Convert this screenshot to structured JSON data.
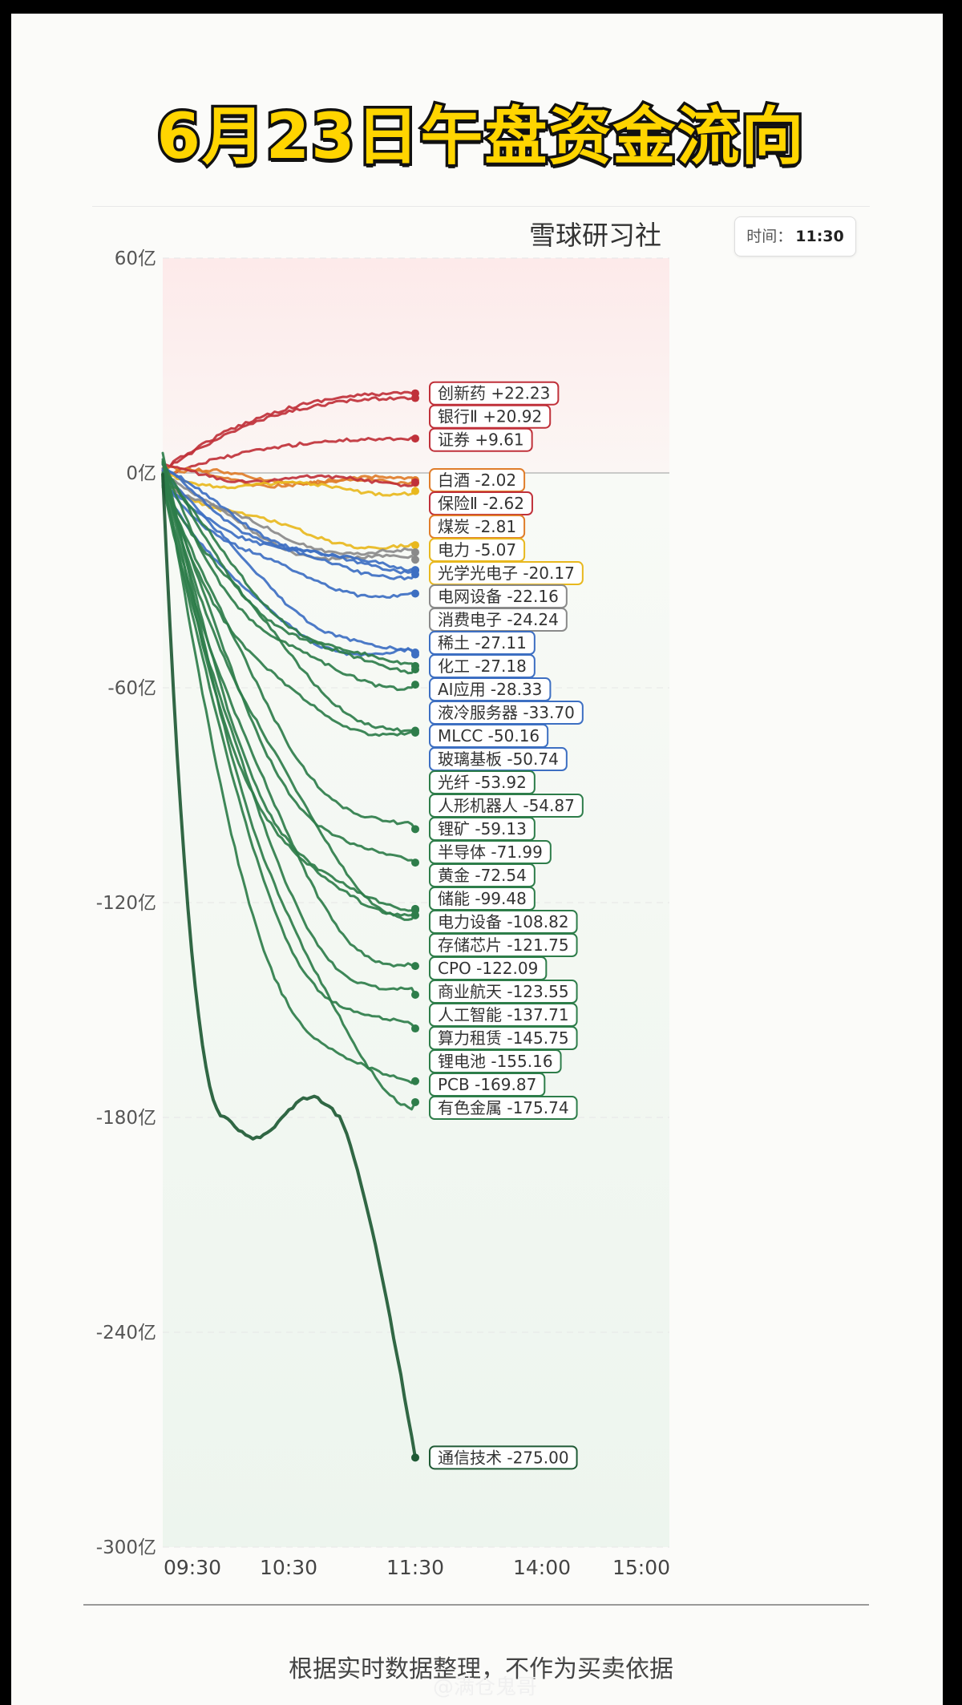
{
  "headline": "6月23日午盘资金流向",
  "brand": "雪球研习社",
  "time_badge": {
    "label": "时间：",
    "value": "11:30"
  },
  "footnote": "根据实时数据整理，不作为买卖依据",
  "watermark": "@满仓鬼哥",
  "colors": {
    "red": "#c0313a",
    "orange": "#e07d2a",
    "yellow": "#e8b81e",
    "gray": "#8a8a8a",
    "blue": "#3d6fc2",
    "green": "#2e7d4a",
    "darkgreen": "#1f5a35"
  },
  "chart_data": {
    "type": "line",
    "xlabel": "",
    "ylabel": "",
    "x_ticks": [
      "09:30",
      "10:30",
      "11:30",
      "14:00",
      "15:00"
    ],
    "y_ticks": [
      "60亿",
      "0亿",
      "-60亿",
      "-120亿",
      "-180亿",
      "-240亿",
      "-300亿"
    ],
    "ylim": [
      -300,
      60
    ],
    "series": [
      {
        "name": "创新药",
        "value": 22.23,
        "value_text": "+22.23",
        "color": "red"
      },
      {
        "name": "银行Ⅱ",
        "value": 20.92,
        "value_text": "+20.92",
        "color": "red"
      },
      {
        "name": "证券",
        "value": 9.61,
        "value_text": "+9.61",
        "color": "red"
      },
      {
        "name": "白酒",
        "value": -2.02,
        "value_text": "-2.02",
        "color": "orange"
      },
      {
        "name": "煤炭",
        "value": -2.81,
        "value_text": "-2.81",
        "color": "orange"
      },
      {
        "name": "保险Ⅱ",
        "value": -2.62,
        "value_text": "-2.62",
        "color": "red"
      },
      {
        "name": "电力",
        "value": -5.07,
        "value_text": "-5.07",
        "color": "yellow"
      },
      {
        "name": "光学光电子",
        "value": -20.17,
        "value_text": "-20.17",
        "color": "yellow"
      },
      {
        "name": "电网设备",
        "value": -22.16,
        "value_text": "-22.16",
        "color": "gray"
      },
      {
        "name": "消费电子",
        "value": -24.24,
        "value_text": "-24.24",
        "color": "gray"
      },
      {
        "name": "稀土",
        "value": -27.11,
        "value_text": "-27.11",
        "color": "blue"
      },
      {
        "name": "化工",
        "value": -27.18,
        "value_text": "-27.18",
        "color": "blue"
      },
      {
        "name": "AI应用",
        "value": -28.33,
        "value_text": "-28.33",
        "color": "blue"
      },
      {
        "name": "液冷服务器",
        "value": -33.7,
        "value_text": "-33.70",
        "color": "blue"
      },
      {
        "name": "MLCC",
        "value": -50.16,
        "value_text": "-50.16",
        "color": "blue"
      },
      {
        "name": "玻璃基板",
        "value": -50.74,
        "value_text": "-50.74",
        "color": "blue"
      },
      {
        "name": "光纤",
        "value": -53.92,
        "value_text": "-53.92",
        "color": "green"
      },
      {
        "name": "人形机器人",
        "value": -54.87,
        "value_text": "-54.87",
        "color": "green"
      },
      {
        "name": "锂矿",
        "value": -59.13,
        "value_text": "-59.13",
        "color": "green"
      },
      {
        "name": "半导体",
        "value": -71.99,
        "value_text": "-71.99",
        "color": "green"
      },
      {
        "name": "黄金",
        "value": -72.54,
        "value_text": "-72.54",
        "color": "green"
      },
      {
        "name": "储能",
        "value": -99.48,
        "value_text": "-99.48",
        "color": "green"
      },
      {
        "name": "电力设备",
        "value": -108.82,
        "value_text": "-108.82",
        "color": "green"
      },
      {
        "name": "存储芯片",
        "value": -121.75,
        "value_text": "-121.75",
        "color": "green"
      },
      {
        "name": "CPO",
        "value": -122.09,
        "value_text": "-122.09",
        "color": "green"
      },
      {
        "name": "商业航天",
        "value": -123.55,
        "value_text": "-123.55",
        "color": "green"
      },
      {
        "name": "人工智能",
        "value": -137.71,
        "value_text": "-137.71",
        "color": "green"
      },
      {
        "name": "算力租赁",
        "value": -145.75,
        "value_text": "-145.75",
        "color": "green"
      },
      {
        "name": "锂电池",
        "value": -155.16,
        "value_text": "-155.16",
        "color": "green"
      },
      {
        "name": "PCB",
        "value": -169.87,
        "value_text": "-169.87",
        "color": "green"
      },
      {
        "name": "有色金属",
        "value": -175.74,
        "value_text": "-175.74",
        "color": "green"
      },
      {
        "name": "通信技术",
        "value": -275.0,
        "value_text": "-275.00",
        "color": "darkgreen"
      }
    ]
  }
}
